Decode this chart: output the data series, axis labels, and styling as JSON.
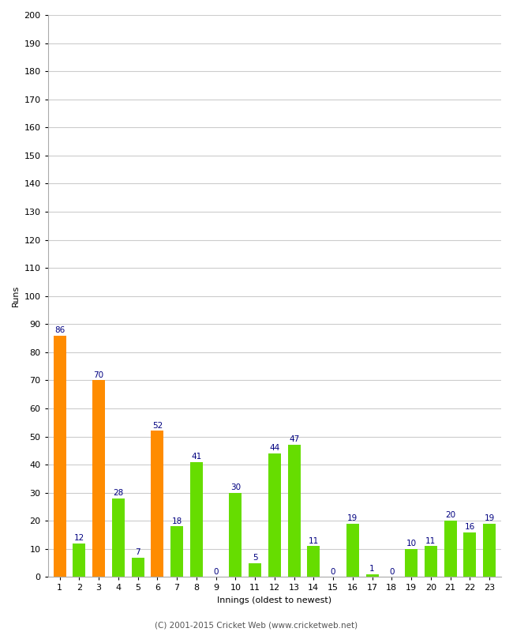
{
  "xlabel": "Innings (oldest to newest)",
  "ylabel": "Runs",
  "categories": [
    "1",
    "2",
    "3",
    "4",
    "5",
    "6",
    "7",
    "8",
    "9",
    "10",
    "11",
    "12",
    "13",
    "14",
    "15",
    "16",
    "17",
    "18",
    "19",
    "20",
    "21",
    "22",
    "23"
  ],
  "values": [
    86,
    12,
    70,
    28,
    7,
    52,
    18,
    41,
    0,
    30,
    5,
    44,
    47,
    11,
    0,
    19,
    1,
    0,
    10,
    11,
    20,
    16,
    19
  ],
  "bar_colors": [
    "#ff8c00",
    "#66dd00",
    "#ff8c00",
    "#66dd00",
    "#66dd00",
    "#ff8c00",
    "#66dd00",
    "#66dd00",
    "#66dd00",
    "#66dd00",
    "#66dd00",
    "#66dd00",
    "#66dd00",
    "#66dd00",
    "#66dd00",
    "#66dd00",
    "#66dd00",
    "#66dd00",
    "#66dd00",
    "#66dd00",
    "#66dd00",
    "#66dd00",
    "#66dd00"
  ],
  "ylim": [
    0,
    200
  ],
  "yticks": [
    0,
    10,
    20,
    30,
    40,
    50,
    60,
    70,
    80,
    90,
    100,
    110,
    120,
    130,
    140,
    150,
    160,
    170,
    180,
    190,
    200
  ],
  "label_color": "#000080",
  "label_fontsize": 7.5,
  "axis_tick_fontsize": 8,
  "xlabel_fontsize": 8,
  "ylabel_fontsize": 8,
  "background_color": "#ffffff",
  "plot_bg_color": "#ffffff",
  "grid_color": "#cccccc",
  "footer": "(C) 2001-2015 Cricket Web (www.cricketweb.net)",
  "footer_fontsize": 7.5
}
